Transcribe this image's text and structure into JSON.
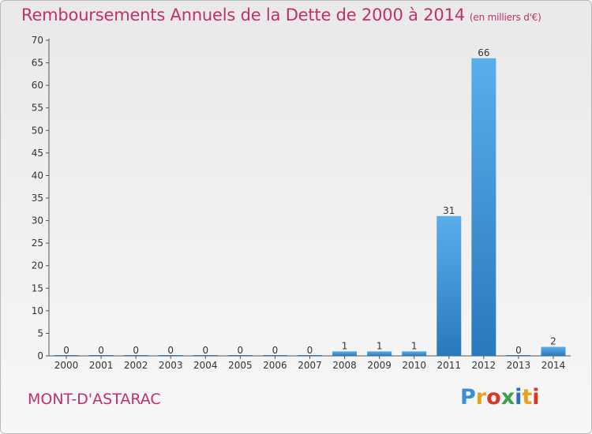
{
  "header": {
    "title": "Remboursements Annuels de la Dette de 2000 à 2014",
    "unit": "(en milliers d'€)"
  },
  "footer": {
    "town": "MONT-D'ASTARAC",
    "logo_text": "Proxiti"
  },
  "colors": {
    "title": "#c0306e",
    "bar_light": "#5aaeea",
    "bar_dark": "#2a78bd"
  },
  "chart_data": {
    "type": "bar",
    "title": "Remboursements Annuels de la Dette de 2000 à 2014",
    "subtitle": "(en milliers d'€)",
    "xlabel": "",
    "ylabel": "",
    "categories": [
      "2000",
      "2001",
      "2002",
      "2003",
      "2004",
      "2005",
      "2006",
      "2007",
      "2008",
      "2009",
      "2010",
      "2011",
      "2012",
      "2013",
      "2014"
    ],
    "values": [
      0,
      0,
      0,
      0,
      0,
      0,
      0,
      0,
      1,
      1,
      1,
      31,
      66,
      0,
      2
    ],
    "ylim": [
      0,
      70
    ],
    "yticks": [
      0,
      5,
      10,
      15,
      20,
      25,
      30,
      35,
      40,
      45,
      50,
      55,
      60,
      65,
      70
    ],
    "grid": false,
    "legend": "none"
  }
}
